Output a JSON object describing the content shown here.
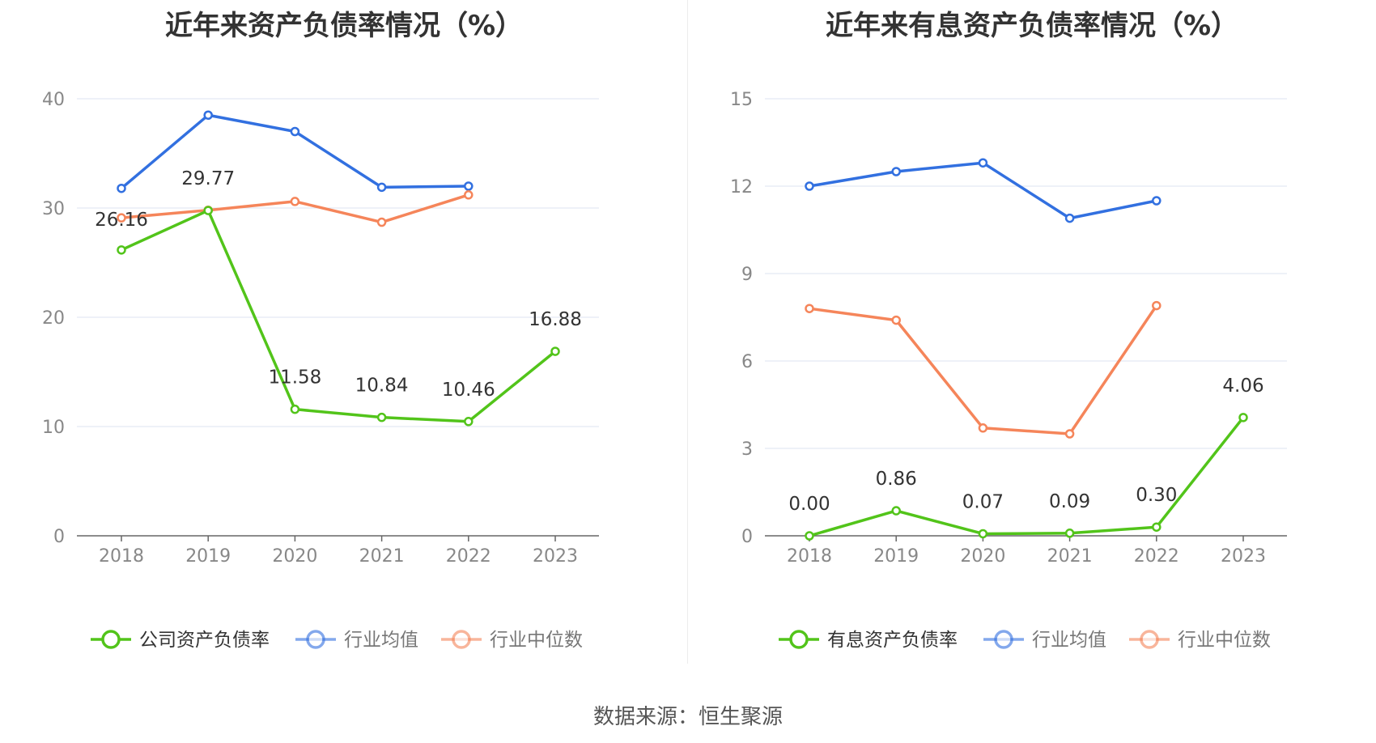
{
  "charts": [
    {
      "title": "近年来资产负债率情况（%）",
      "yticks": [
        "0",
        "10",
        "20",
        "30",
        "40"
      ],
      "xticks": [
        "2018",
        "2019",
        "2020",
        "2021",
        "2022",
        "2023"
      ],
      "legend": [
        "公司资产负债率",
        "行业均值",
        "行业中位数"
      ],
      "value_labels": [
        "26.16",
        "29.77",
        "11.58",
        "10.84",
        "10.46",
        "16.88"
      ]
    },
    {
      "title": "近年来有息资产负债率情况（%）",
      "yticks": [
        "0",
        "3",
        "6",
        "9",
        "12",
        "15"
      ],
      "xticks": [
        "2018",
        "2019",
        "2020",
        "2021",
        "2022",
        "2023"
      ],
      "legend": [
        "有息资产负债率",
        "行业均值",
        "行业中位数"
      ],
      "value_labels": [
        "0.00",
        "0.86",
        "0.07",
        "0.09",
        "0.30",
        "4.06"
      ]
    }
  ],
  "source": "数据来源：恒生聚源",
  "colors": {
    "company": "#52c41a",
    "mean": "#3270e0",
    "median": "#f5855a",
    "grid": "#dde3f0",
    "axis": "#666666",
    "tick_text": "#888888",
    "label_text": "#333333"
  },
  "chart_data": [
    {
      "type": "line",
      "title": "近年来资产负债率情况（%）",
      "x": [
        "2018",
        "2019",
        "2020",
        "2021",
        "2022",
        "2023"
      ],
      "ylim": [
        0,
        40
      ],
      "grid": true,
      "legend_position": "bottom",
      "series": [
        {
          "name": "公司资产负债率",
          "values": [
            26.16,
            29.77,
            11.58,
            10.84,
            10.46,
            16.88
          ]
        },
        {
          "name": "行业均值",
          "values": [
            31.8,
            38.5,
            37.0,
            31.9,
            32.0,
            null
          ]
        },
        {
          "name": "行业中位数",
          "values": [
            29.1,
            29.8,
            30.6,
            28.7,
            31.2,
            null
          ]
        }
      ]
    },
    {
      "type": "line",
      "title": "近年来有息资产负债率情况（%）",
      "x": [
        "2018",
        "2019",
        "2020",
        "2021",
        "2022",
        "2023"
      ],
      "ylim": [
        0,
        15
      ],
      "grid": true,
      "legend_position": "bottom",
      "series": [
        {
          "name": "有息资产负债率",
          "values": [
            0.0,
            0.86,
            0.07,
            0.09,
            0.3,
            4.06
          ]
        },
        {
          "name": "行业均值",
          "values": [
            12.0,
            12.5,
            12.8,
            10.9,
            11.5,
            null
          ]
        },
        {
          "name": "行业中位数",
          "values": [
            7.8,
            7.4,
            3.7,
            3.5,
            7.9,
            null
          ]
        }
      ]
    }
  ]
}
